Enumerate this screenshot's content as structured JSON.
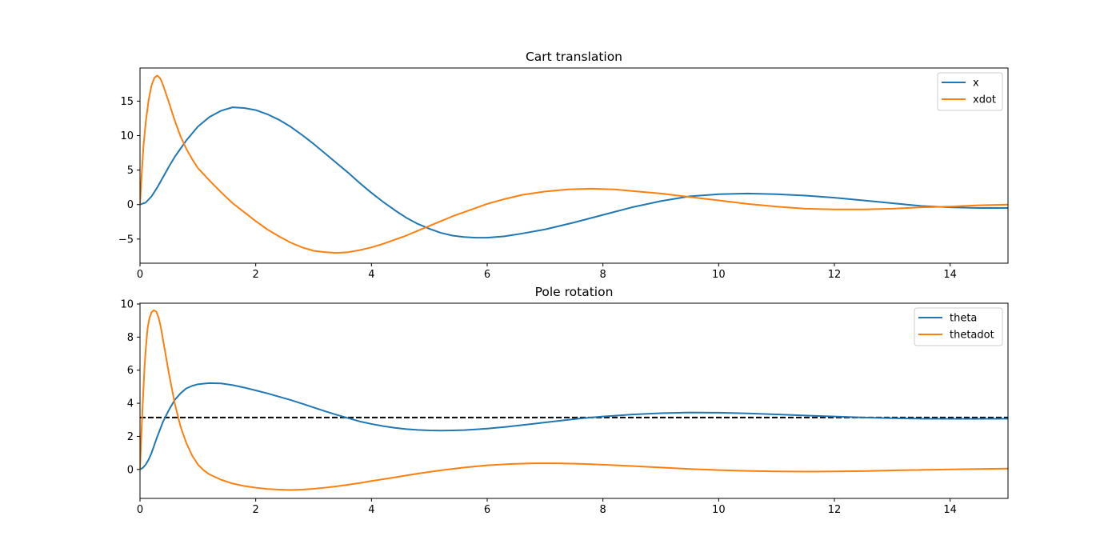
{
  "chart_data": [
    {
      "type": "line",
      "title": "Cart translation",
      "xlabel": "",
      "ylabel": "",
      "xlim": [
        0,
        15
      ],
      "ylim": [
        -8.5,
        19.8
      ],
      "xticks": [
        0,
        2,
        4,
        6,
        8,
        10,
        12,
        14
      ],
      "yticks": [
        -5,
        0,
        5,
        10,
        15
      ],
      "xtick_labels": [
        "0",
        "2",
        "4",
        "6",
        "8",
        "10",
        "12",
        "14"
      ],
      "ytick_labels": [
        "−5",
        "0",
        "5",
        "10",
        "15"
      ],
      "grid": false,
      "legend_position": "top-right",
      "series": [
        {
          "name": "x",
          "color": "#1f77b4",
          "points": [
            [
              0,
              0
            ],
            [
              0.1,
              0.3
            ],
            [
              0.2,
              1.2
            ],
            [
              0.3,
              2.5
            ],
            [
              0.4,
              4.0
            ],
            [
              0.5,
              5.5
            ],
            [
              0.6,
              6.9
            ],
            [
              0.7,
              8.1
            ],
            [
              0.8,
              9.3
            ],
            [
              0.9,
              10.3
            ],
            [
              1.0,
              11.3
            ],
            [
              1.2,
              12.7
            ],
            [
              1.4,
              13.6
            ],
            [
              1.6,
              14.1
            ],
            [
              1.8,
              14.0
            ],
            [
              2.0,
              13.7
            ],
            [
              2.2,
              13.1
            ],
            [
              2.4,
              12.3
            ],
            [
              2.6,
              11.3
            ],
            [
              2.8,
              10.1
            ],
            [
              3.0,
              8.8
            ],
            [
              3.2,
              7.4
            ],
            [
              3.4,
              6.0
            ],
            [
              3.6,
              4.6
            ],
            [
              3.8,
              3.1
            ],
            [
              4.0,
              1.7
            ],
            [
              4.2,
              0.4
            ],
            [
              4.4,
              -0.8
            ],
            [
              4.6,
              -1.9
            ],
            [
              4.8,
              -2.8
            ],
            [
              5.0,
              -3.5
            ],
            [
              5.2,
              -4.1
            ],
            [
              5.4,
              -4.5
            ],
            [
              5.6,
              -4.7
            ],
            [
              5.8,
              -4.8
            ],
            [
              6.0,
              -4.8
            ],
            [
              6.3,
              -4.6
            ],
            [
              6.6,
              -4.2
            ],
            [
              7.0,
              -3.6
            ],
            [
              7.5,
              -2.6
            ],
            [
              8.0,
              -1.5
            ],
            [
              8.5,
              -0.4
            ],
            [
              9.0,
              0.5
            ],
            [
              9.5,
              1.2
            ],
            [
              10.0,
              1.5
            ],
            [
              10.5,
              1.6
            ],
            [
              11.0,
              1.5
            ],
            [
              11.5,
              1.3
            ],
            [
              12.0,
              1.0
            ],
            [
              12.5,
              0.6
            ],
            [
              13.0,
              0.2
            ],
            [
              13.5,
              -0.2
            ],
            [
              14.0,
              -0.4
            ],
            [
              14.5,
              -0.5
            ],
            [
              15.0,
              -0.5
            ]
          ]
        },
        {
          "name": "xdot",
          "color": "#ff7f0e",
          "points": [
            [
              0,
              0
            ],
            [
              0.03,
              4.5
            ],
            [
              0.06,
              8.5
            ],
            [
              0.1,
              12.0
            ],
            [
              0.15,
              15.2
            ],
            [
              0.2,
              17.3
            ],
            [
              0.25,
              18.4
            ],
            [
              0.3,
              18.7
            ],
            [
              0.35,
              18.3
            ],
            [
              0.4,
              17.3
            ],
            [
              0.5,
              14.8
            ],
            [
              0.6,
              12.2
            ],
            [
              0.7,
              9.9
            ],
            [
              0.8,
              8.1
            ],
            [
              0.9,
              6.6
            ],
            [
              1.0,
              5.3
            ],
            [
              1.2,
              3.5
            ],
            [
              1.4,
              1.8
            ],
            [
              1.6,
              0.2
            ],
            [
              1.8,
              -1.1
            ],
            [
              2.0,
              -2.4
            ],
            [
              2.2,
              -3.6
            ],
            [
              2.4,
              -4.6
            ],
            [
              2.6,
              -5.5
            ],
            [
              2.8,
              -6.2
            ],
            [
              3.0,
              -6.7
            ],
            [
              3.2,
              -6.9
            ],
            [
              3.4,
              -7.0
            ],
            [
              3.6,
              -6.9
            ],
            [
              3.8,
              -6.6
            ],
            [
              4.0,
              -6.2
            ],
            [
              4.2,
              -5.7
            ],
            [
              4.4,
              -5.1
            ],
            [
              4.6,
              -4.5
            ],
            [
              4.8,
              -3.8
            ],
            [
              5.0,
              -3.1
            ],
            [
              5.2,
              -2.4
            ],
            [
              5.4,
              -1.7
            ],
            [
              5.6,
              -1.1
            ],
            [
              5.8,
              -0.5
            ],
            [
              6.0,
              0.1
            ],
            [
              6.3,
              0.8
            ],
            [
              6.6,
              1.4
            ],
            [
              7.0,
              1.9
            ],
            [
              7.4,
              2.2
            ],
            [
              7.8,
              2.3
            ],
            [
              8.2,
              2.2
            ],
            [
              8.6,
              1.9
            ],
            [
              9.0,
              1.6
            ],
            [
              9.5,
              1.1
            ],
            [
              10.0,
              0.6
            ],
            [
              10.5,
              0.1
            ],
            [
              11.0,
              -0.3
            ],
            [
              11.5,
              -0.6
            ],
            [
              12.0,
              -0.7
            ],
            [
              12.5,
              -0.7
            ],
            [
              13.0,
              -0.6
            ],
            [
              13.5,
              -0.4
            ],
            [
              14.0,
              -0.3
            ],
            [
              14.5,
              -0.1
            ],
            [
              15.0,
              0.0
            ]
          ]
        }
      ]
    },
    {
      "type": "line",
      "title": "Pole rotation",
      "xlabel": "",
      "ylabel": "",
      "xlim": [
        0,
        15
      ],
      "ylim": [
        -1.75,
        10.05
      ],
      "xticks": [
        0,
        2,
        4,
        6,
        8,
        10,
        12,
        14
      ],
      "yticks": [
        0,
        2,
        4,
        6,
        8,
        10
      ],
      "xtick_labels": [
        "0",
        "2",
        "4",
        "6",
        "8",
        "10",
        "12",
        "14"
      ],
      "ytick_labels": [
        "0",
        "2",
        "4",
        "6",
        "8",
        "10"
      ],
      "grid": false,
      "legend_position": "top-right",
      "reference_line": {
        "y": 3.14159,
        "color": "#000000",
        "style": "dashed"
      },
      "series": [
        {
          "name": "theta",
          "color": "#1f77b4",
          "points": [
            [
              0,
              0
            ],
            [
              0.05,
              0.1
            ],
            [
              0.1,
              0.3
            ],
            [
              0.15,
              0.6
            ],
            [
              0.2,
              1.0
            ],
            [
              0.3,
              2.0
            ],
            [
              0.4,
              2.9
            ],
            [
              0.5,
              3.6
            ],
            [
              0.6,
              4.2
            ],
            [
              0.7,
              4.6
            ],
            [
              0.8,
              4.9
            ],
            [
              0.9,
              5.05
            ],
            [
              1.0,
              5.15
            ],
            [
              1.2,
              5.22
            ],
            [
              1.4,
              5.2
            ],
            [
              1.6,
              5.1
            ],
            [
              1.8,
              4.95
            ],
            [
              2.0,
              4.78
            ],
            [
              2.2,
              4.6
            ],
            [
              2.4,
              4.4
            ],
            [
              2.6,
              4.2
            ],
            [
              2.8,
              3.98
            ],
            [
              3.0,
              3.75
            ],
            [
              3.2,
              3.52
            ],
            [
              3.4,
              3.3
            ],
            [
              3.6,
              3.1
            ],
            [
              3.8,
              2.9
            ],
            [
              4.0,
              2.75
            ],
            [
              4.2,
              2.62
            ],
            [
              4.4,
              2.52
            ],
            [
              4.6,
              2.44
            ],
            [
              4.8,
              2.39
            ],
            [
              5.0,
              2.36
            ],
            [
              5.2,
              2.35
            ],
            [
              5.4,
              2.36
            ],
            [
              5.6,
              2.38
            ],
            [
              5.8,
              2.42
            ],
            [
              6.0,
              2.47
            ],
            [
              6.4,
              2.6
            ],
            [
              6.8,
              2.76
            ],
            [
              7.2,
              2.92
            ],
            [
              7.6,
              3.08
            ],
            [
              8.0,
              3.2
            ],
            [
              8.5,
              3.32
            ],
            [
              9.0,
              3.4
            ],
            [
              9.5,
              3.44
            ],
            [
              10.0,
              3.43
            ],
            [
              10.5,
              3.39
            ],
            [
              11.0,
              3.33
            ],
            [
              11.5,
              3.26
            ],
            [
              12.0,
              3.2
            ],
            [
              12.5,
              3.14
            ],
            [
              13.0,
              3.1
            ],
            [
              13.5,
              3.07
            ],
            [
              14.0,
              3.06
            ],
            [
              14.5,
              3.06
            ],
            [
              15.0,
              3.07
            ]
          ]
        },
        {
          "name": "thetadot",
          "color": "#ff7f0e",
          "points": [
            [
              0,
              0
            ],
            [
              0.02,
              1.8
            ],
            [
              0.05,
              4.2
            ],
            [
              0.08,
              6.3
            ],
            [
              0.1,
              7.3
            ],
            [
              0.13,
              8.5
            ],
            [
              0.16,
              9.1
            ],
            [
              0.2,
              9.5
            ],
            [
              0.24,
              9.62
            ],
            [
              0.28,
              9.55
            ],
            [
              0.32,
              9.2
            ],
            [
              0.36,
              8.6
            ],
            [
              0.4,
              7.8
            ],
            [
              0.45,
              6.8
            ],
            [
              0.5,
              5.8
            ],
            [
              0.55,
              4.9
            ],
            [
              0.6,
              4.0
            ],
            [
              0.7,
              2.6
            ],
            [
              0.8,
              1.6
            ],
            [
              0.9,
              0.85
            ],
            [
              1.0,
              0.3
            ],
            [
              1.1,
              -0.05
            ],
            [
              1.2,
              -0.3
            ],
            [
              1.4,
              -0.62
            ],
            [
              1.6,
              -0.85
            ],
            [
              1.8,
              -1.0
            ],
            [
              2.0,
              -1.1
            ],
            [
              2.2,
              -1.18
            ],
            [
              2.4,
              -1.22
            ],
            [
              2.6,
              -1.24
            ],
            [
              2.8,
              -1.22
            ],
            [
              3.0,
              -1.17
            ],
            [
              3.2,
              -1.1
            ],
            [
              3.4,
              -1.02
            ],
            [
              3.6,
              -0.92
            ],
            [
              3.8,
              -0.82
            ],
            [
              4.0,
              -0.7
            ],
            [
              4.4,
              -0.48
            ],
            [
              4.8,
              -0.25
            ],
            [
              5.2,
              -0.05
            ],
            [
              5.6,
              0.12
            ],
            [
              6.0,
              0.25
            ],
            [
              6.4,
              0.33
            ],
            [
              6.8,
              0.37
            ],
            [
              7.2,
              0.37
            ],
            [
              7.6,
              0.34
            ],
            [
              8.0,
              0.29
            ],
            [
              8.5,
              0.21
            ],
            [
              9.0,
              0.12
            ],
            [
              9.5,
              0.03
            ],
            [
              10.0,
              -0.04
            ],
            [
              10.5,
              -0.09
            ],
            [
              11.0,
              -0.12
            ],
            [
              11.5,
              -0.13
            ],
            [
              12.0,
              -0.12
            ],
            [
              12.5,
              -0.1
            ],
            [
              13.0,
              -0.06
            ],
            [
              13.5,
              -0.03
            ],
            [
              14.0,
              0.0
            ],
            [
              14.5,
              0.03
            ],
            [
              15.0,
              0.05
            ]
          ]
        }
      ]
    }
  ]
}
